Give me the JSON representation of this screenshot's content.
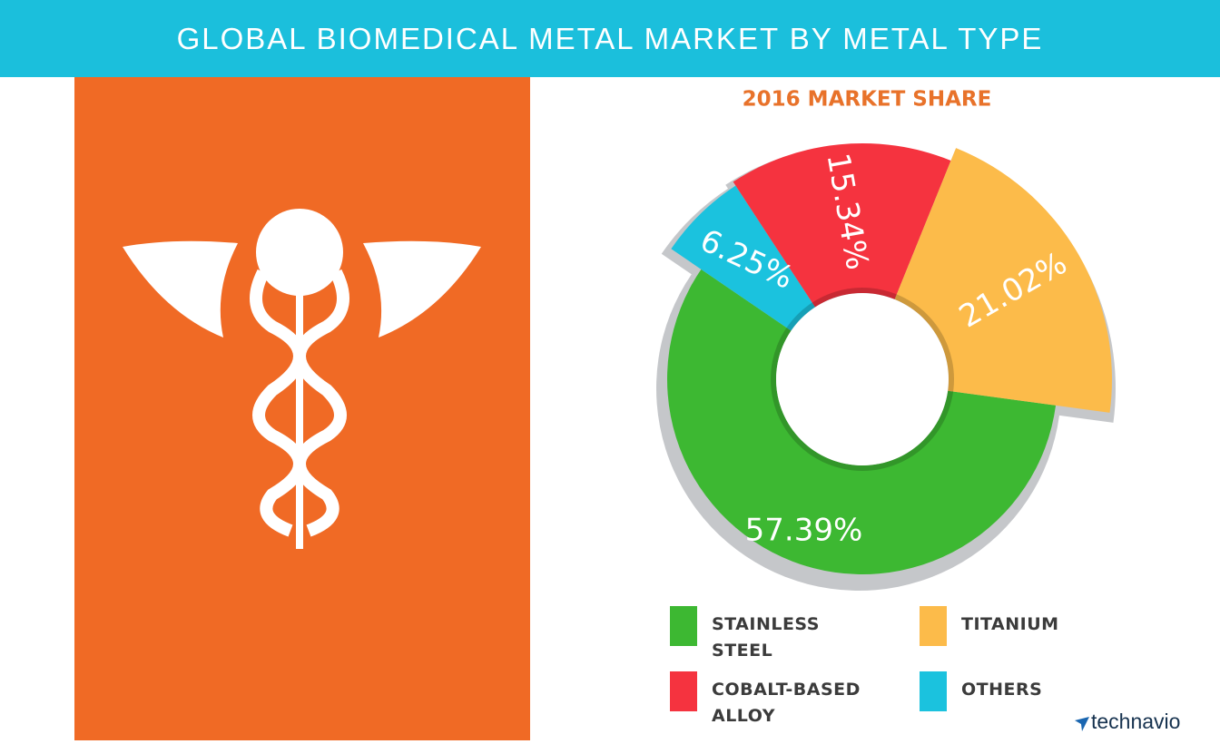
{
  "header": {
    "title": "GLOBAL BIOMEDICAL METAL MARKET BY METAL TYPE"
  },
  "chart_data": {
    "type": "donut",
    "title": "2016 MARKET SHARE",
    "categories": [
      "STAINLESS STEEL",
      "TITANIUM",
      "COBALT-BASED ALLOY",
      "OTHERS"
    ],
    "values": [
      57.39,
      21.02,
      15.34,
      6.25
    ],
    "value_labels": [
      "57.39%",
      "21.02%",
      "15.34%",
      "6.25%"
    ],
    "colors": [
      "#3db832",
      "#fcbb4a",
      "#f5333f",
      "#1bc2de"
    ]
  },
  "brand": "technavio"
}
